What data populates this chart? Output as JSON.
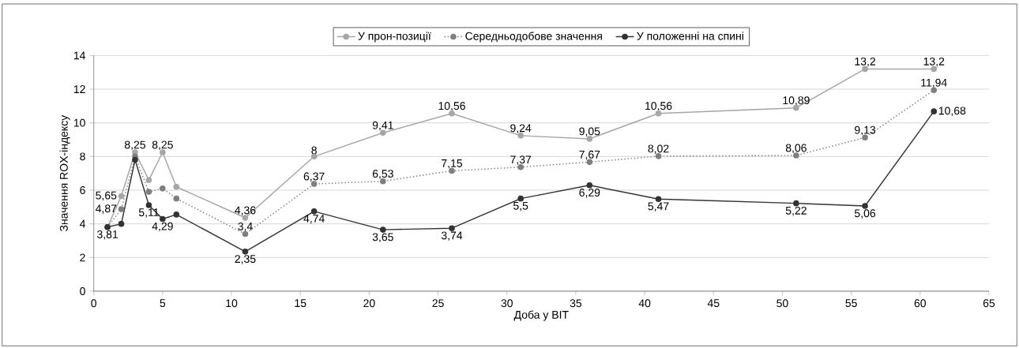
{
  "chart_data": {
    "type": "line",
    "xlabel": "Доба у ВІТ",
    "ylabel": "Значення ROX-індексу",
    "x": [
      1,
      2,
      3,
      4,
      5,
      6,
      11,
      16,
      21,
      26,
      31,
      36,
      41,
      51,
      56,
      61
    ],
    "series": [
      {
        "name": "У прон-позиції",
        "color": "#a6a6a6",
        "line_style": "solid",
        "values": [
          3.81,
          5.65,
          8.25,
          6.6,
          8.25,
          6.2,
          4.36,
          8,
          9.41,
          10.56,
          9.24,
          9.05,
          10.56,
          10.89,
          13.2,
          13.2
        ],
        "value_labels": [
          null,
          "5,65",
          "8,25",
          null,
          "8,25",
          null,
          "4,36",
          "8",
          "9,41",
          "10,56",
          "9,24",
          "9,05",
          "10,56",
          "10,89",
          "13,2",
          "13,2"
        ]
      },
      {
        "name": "Середньодобове значення",
        "color": "#7f7f7f",
        "line_style": "dotted",
        "values": [
          3.81,
          4.87,
          8.0,
          5.9,
          6.1,
          5.5,
          3.4,
          6.37,
          6.53,
          7.15,
          7.37,
          7.67,
          8.02,
          8.06,
          9.13,
          11.94
        ],
        "value_labels": [
          null,
          "4,87",
          null,
          null,
          null,
          null,
          "3,4",
          "6,37",
          "6,53",
          "7,15",
          "7,37",
          "7,67",
          "8,02",
          "8,06",
          "9,13",
          "11,94"
        ]
      },
      {
        "name": "У положенні на спині",
        "color": "#333333",
        "line_style": "solid",
        "values": [
          3.81,
          4.0,
          7.8,
          5.11,
          4.29,
          4.55,
          2.35,
          4.74,
          3.65,
          3.74,
          5.5,
          6.29,
          5.47,
          5.22,
          5.06,
          10.68
        ],
        "value_labels": [
          "3,81",
          null,
          null,
          "5,11",
          "4,29",
          null,
          "2,35",
          "4,74",
          "3,65",
          "3,74",
          "5,5",
          "6,29",
          "5,47",
          "5,22",
          "5,06",
          "10,68"
        ]
      }
    ],
    "xlim": [
      0,
      65
    ],
    "xticks": [
      0,
      5,
      10,
      15,
      20,
      25,
      30,
      35,
      40,
      45,
      50,
      55,
      60,
      65
    ],
    "ylim": [
      0,
      14
    ],
    "yticks": [
      0,
      2,
      4,
      6,
      8,
      10,
      12,
      14
    ],
    "grid": "y",
    "legend": "top",
    "marker": "circle"
  }
}
